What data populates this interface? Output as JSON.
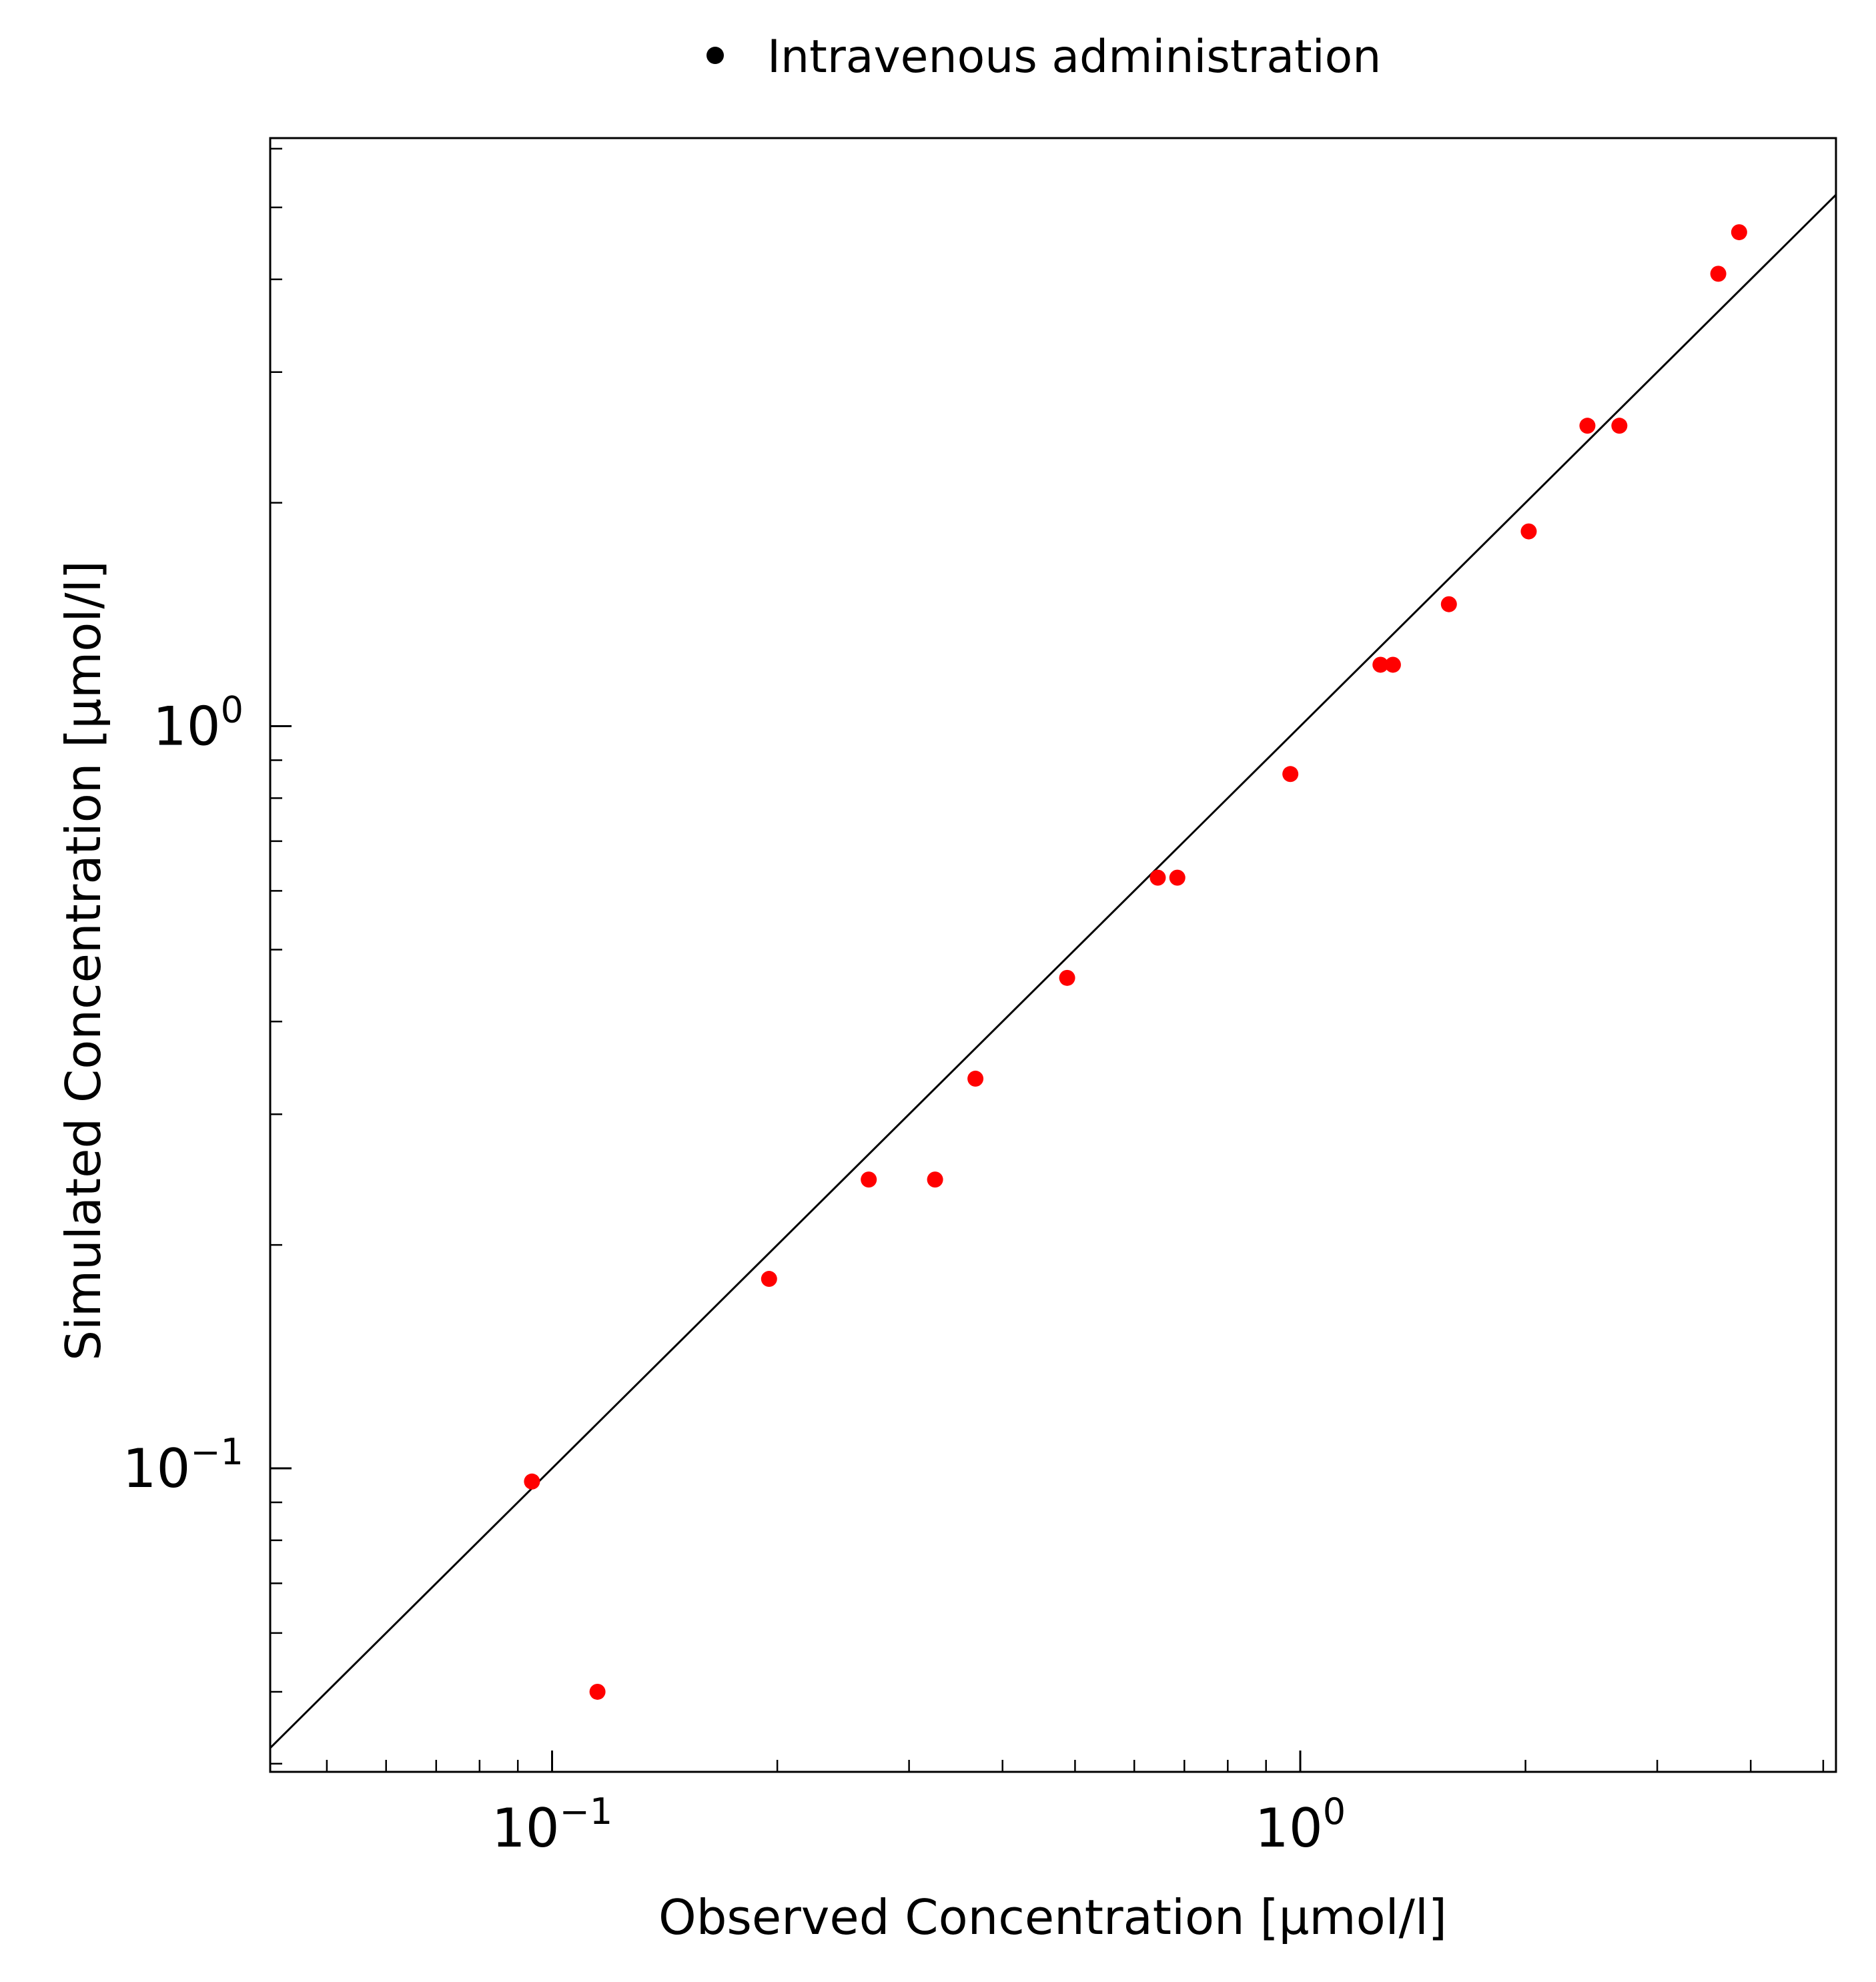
{
  "chart_data": {
    "type": "scatter",
    "title": "",
    "xlabel": "Observed Concentration [µmol/l]",
    "ylabel": "Simulated Concentration [µmol/l]",
    "x_scale": "log",
    "y_scale": "log",
    "xlim": [
      0.042,
      5.2
    ],
    "ylim": [
      0.039,
      6.2
    ],
    "grid": false,
    "legend": {
      "placement": "top-center",
      "marker_color": "#000000"
    },
    "x_tick_labels": [
      {
        "value": 0.1,
        "base": "10",
        "exp": "−1"
      },
      {
        "value": 1,
        "base": "10",
        "exp": "0"
      }
    ],
    "y_tick_labels": [
      {
        "value": 0.1,
        "base": "10",
        "exp": "−1"
      },
      {
        "value": 1,
        "base": "10",
        "exp": "0"
      }
    ],
    "identity_line": true,
    "series": [
      {
        "name": "Intravenous administration",
        "color": "#ff0000",
        "points": [
          {
            "x": 0.094,
            "y": 0.096
          },
          {
            "x": 0.115,
            "y": 0.05
          },
          {
            "x": 0.195,
            "y": 0.18
          },
          {
            "x": 0.265,
            "y": 0.245
          },
          {
            "x": 0.325,
            "y": 0.245
          },
          {
            "x": 0.368,
            "y": 0.335
          },
          {
            "x": 0.488,
            "y": 0.458
          },
          {
            "x": 0.645,
            "y": 0.625
          },
          {
            "x": 0.685,
            "y": 0.625
          },
          {
            "x": 0.97,
            "y": 0.862
          },
          {
            "x": 1.28,
            "y": 1.21
          },
          {
            "x": 1.33,
            "y": 1.21
          },
          {
            "x": 1.58,
            "y": 1.46
          },
          {
            "x": 2.02,
            "y": 1.83
          },
          {
            "x": 2.42,
            "y": 2.54
          },
          {
            "x": 2.67,
            "y": 2.54
          },
          {
            "x": 3.62,
            "y": 4.07
          },
          {
            "x": 3.86,
            "y": 4.63
          }
        ]
      }
    ]
  }
}
